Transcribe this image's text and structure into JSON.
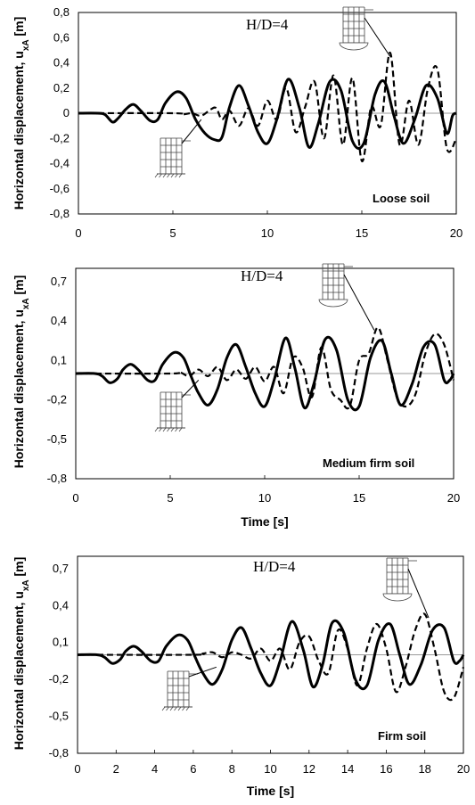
{
  "chart_data": [
    {
      "type": "line",
      "title": "",
      "annotation": "H/D=4",
      "soil_label": "Loose soil",
      "xlabel": "",
      "ylabel": "Horizontal displacement, u",
      "ylabel_sub": "xA",
      "ylabel_unit": " [m]",
      "xlim": [
        0,
        20
      ],
      "ylim": [
        -0.8,
        0.8
      ],
      "x_ticks": [
        "0",
        "5",
        "10",
        "15",
        "20"
      ],
      "y_ticks": [
        "0,8",
        "0,6",
        "0,4",
        "0,2",
        "0",
        "-0,2",
        "-0,4",
        "-0,6",
        "-0,8"
      ],
      "series": [
        {
          "style": "solid",
          "x": [
            0,
            1,
            1.4,
            1.8,
            2.1,
            2.5,
            2.9,
            3.3,
            3.8,
            4.2,
            4.6,
            5.2,
            5.7,
            6.2,
            6.7,
            7.2,
            7.6,
            8.0,
            8.5,
            9.0,
            9.5,
            10.0,
            10.5,
            11.1,
            11.7,
            12.2,
            12.7,
            13.3,
            13.9,
            14.5,
            15.1,
            15.7,
            16.2,
            16.7,
            17.2,
            17.8,
            18.4,
            19.0,
            19.5,
            19.8,
            20
          ],
          "values": [
            0,
            0,
            -0.01,
            -0.07,
            -0.04,
            0.03,
            0.07,
            0.02,
            -0.06,
            -0.05,
            0.08,
            0.17,
            0.12,
            -0.05,
            -0.16,
            -0.21,
            -0.19,
            0.05,
            0.22,
            0.06,
            -0.15,
            -0.24,
            -0.05,
            0.27,
            0.04,
            -0.27,
            -0.08,
            0.25,
            0.18,
            -0.22,
            -0.24,
            0.15,
            0.25,
            -0.02,
            -0.24,
            -0.05,
            0.22,
            0.12,
            -0.16,
            -0.02,
            0
          ]
        },
        {
          "style": "dashed",
          "x": [
            0,
            5,
            5.5,
            6,
            6.5,
            7,
            7.3,
            7.6,
            8,
            8.5,
            9,
            9.5,
            10,
            10.5,
            11,
            11.5,
            12,
            12.5,
            13,
            13.5,
            14,
            14.5,
            15,
            15.5,
            16,
            16.5,
            17,
            17.5,
            18,
            18.5,
            19,
            19.5,
            20
          ],
          "values": [
            0,
            0,
            -0.01,
            0,
            -0.02,
            0.03,
            0.04,
            -0.05,
            0.02,
            -0.1,
            0.04,
            -0.1,
            0.1,
            -0.05,
            0.2,
            -0.15,
            0.05,
            0.25,
            -0.2,
            0.3,
            -0.25,
            0.28,
            -0.38,
            0.05,
            -0.1,
            0.48,
            -0.25,
            0.1,
            -0.25,
            0.2,
            0.35,
            -0.28,
            -0.2
          ]
        }
      ]
    },
    {
      "type": "line",
      "title": "",
      "annotation": "H/D=4",
      "soil_label": "Medium firm soil",
      "xlabel": "Time [s]",
      "ylabel": "Horizontal displacement, u",
      "ylabel_sub": "xA",
      "ylabel_unit": " [m]",
      "xlim": [
        0,
        20
      ],
      "ylim": [
        -0.8,
        0.8
      ],
      "x_ticks": [
        "0",
        "5",
        "10",
        "15",
        "20"
      ],
      "y_ticks": [
        "0,7",
        "0,4",
        "0,1",
        "-0,2",
        "-0,5",
        "-0,8"
      ],
      "series": [
        {
          "style": "solid",
          "x": [
            0,
            1,
            1.4,
            1.8,
            2.2,
            2.5,
            2.9,
            3.3,
            3.8,
            4.2,
            4.6,
            5.2,
            5.7,
            6.1,
            6.5,
            7.0,
            7.5,
            8.0,
            8.5,
            9.0,
            9.5,
            10.0,
            10.5,
            11.1,
            11.6,
            12.1,
            12.6,
            13.2,
            13.8,
            14.4,
            15.0,
            15.6,
            16.2,
            16.7,
            17.2,
            17.8,
            18.4,
            19.0,
            19.5,
            19.8,
            20
          ],
          "values": [
            0,
            0,
            -0.02,
            -0.07,
            -0.04,
            0.03,
            0.07,
            0.03,
            -0.05,
            -0.05,
            0.07,
            0.16,
            0.12,
            -0.02,
            -0.15,
            -0.24,
            -0.12,
            0.12,
            0.22,
            0.05,
            -0.15,
            -0.25,
            -0.05,
            0.27,
            0.04,
            -0.26,
            -0.08,
            0.26,
            0.18,
            -0.2,
            -0.25,
            0.12,
            0.25,
            0.0,
            -0.24,
            -0.08,
            0.2,
            0.22,
            -0.05,
            -0.05,
            0
          ]
        },
        {
          "style": "dashed",
          "x": [
            0,
            5,
            5.5,
            6,
            6.5,
            7,
            7.5,
            8,
            8.5,
            9,
            9.5,
            10,
            10.5,
            11,
            11.5,
            12,
            12.5,
            13,
            13.5,
            14,
            14.5,
            15,
            15.5,
            16,
            16.5,
            17,
            17.5,
            18,
            18.5,
            19,
            19.5,
            20
          ],
          "values": [
            0,
            0,
            0.01,
            -0.02,
            0.03,
            -0.02,
            0.05,
            -0.05,
            0.03,
            -0.04,
            0.05,
            -0.06,
            0.05,
            -0.15,
            0.12,
            0.05,
            -0.18,
            0.2,
            -0.12,
            -0.2,
            -0.25,
            0.1,
            0.15,
            0.35,
            0.1,
            -0.18,
            -0.25,
            -0.15,
            0.15,
            0.3,
            0.22,
            -0.05
          ]
        }
      ]
    },
    {
      "type": "line",
      "title": "",
      "annotation": "H/D=4",
      "soil_label": "Firm soil",
      "xlabel": "Time [s]",
      "ylabel": "Horizontal displacement, u",
      "ylabel_sub": "xA",
      "ylabel_unit": " [m]",
      "xlim": [
        0,
        20
      ],
      "ylim": [
        -0.8,
        0.8
      ],
      "x_ticks": [
        "0",
        "2",
        "4",
        "6",
        "8",
        "10",
        "12",
        "14",
        "16",
        "18",
        "20"
      ],
      "y_ticks": [
        "0,7",
        "0,4",
        "0,1",
        "-0,2",
        "-0,5",
        "-0,8"
      ],
      "series": [
        {
          "style": "solid",
          "x": [
            0,
            1,
            1.4,
            1.8,
            2.2,
            2.5,
            2.9,
            3.3,
            3.8,
            4.2,
            4.6,
            5.2,
            5.7,
            6.1,
            6.5,
            7.0,
            7.5,
            8.0,
            8.5,
            9.0,
            9.5,
            10.0,
            10.5,
            11.1,
            11.7,
            12.2,
            12.7,
            13.2,
            13.8,
            14.4,
            15.0,
            15.6,
            16.2,
            16.7,
            17.2,
            17.8,
            18.4,
            19.0,
            19.5,
            19.8,
            20
          ],
          "values": [
            0,
            0,
            -0.02,
            -0.07,
            -0.04,
            0.03,
            0.07,
            0.03,
            -0.05,
            -0.05,
            0.07,
            0.16,
            0.12,
            -0.02,
            -0.15,
            -0.24,
            -0.12,
            0.12,
            0.22,
            0.05,
            -0.15,
            -0.25,
            -0.05,
            0.27,
            0.04,
            -0.26,
            -0.08,
            0.26,
            0.18,
            -0.2,
            -0.25,
            0.12,
            0.25,
            0.0,
            -0.24,
            -0.08,
            0.2,
            0.22,
            -0.05,
            -0.05,
            0
          ]
        },
        {
          "style": "dashed",
          "x": [
            0,
            6,
            6.5,
            7,
            7.5,
            8,
            8.5,
            9,
            9.5,
            10,
            10.5,
            11,
            11.5,
            12,
            12.5,
            13,
            13.5,
            14,
            14.5,
            15,
            15.5,
            16,
            16.5,
            17,
            17.5,
            18,
            18.5,
            19,
            19.5,
            20
          ],
          "values": [
            0,
            0,
            0.01,
            0.02,
            -0.02,
            0.02,
            0.0,
            -0.03,
            0.05,
            -0.05,
            0.05,
            -0.12,
            0.1,
            0.15,
            -0.05,
            -0.15,
            0.2,
            0.05,
            -0.25,
            0.05,
            0.25,
            0.05,
            -0.3,
            -0.1,
            0.2,
            0.33,
            0.05,
            -0.3,
            -0.35,
            -0.1
          ]
        }
      ]
    }
  ]
}
